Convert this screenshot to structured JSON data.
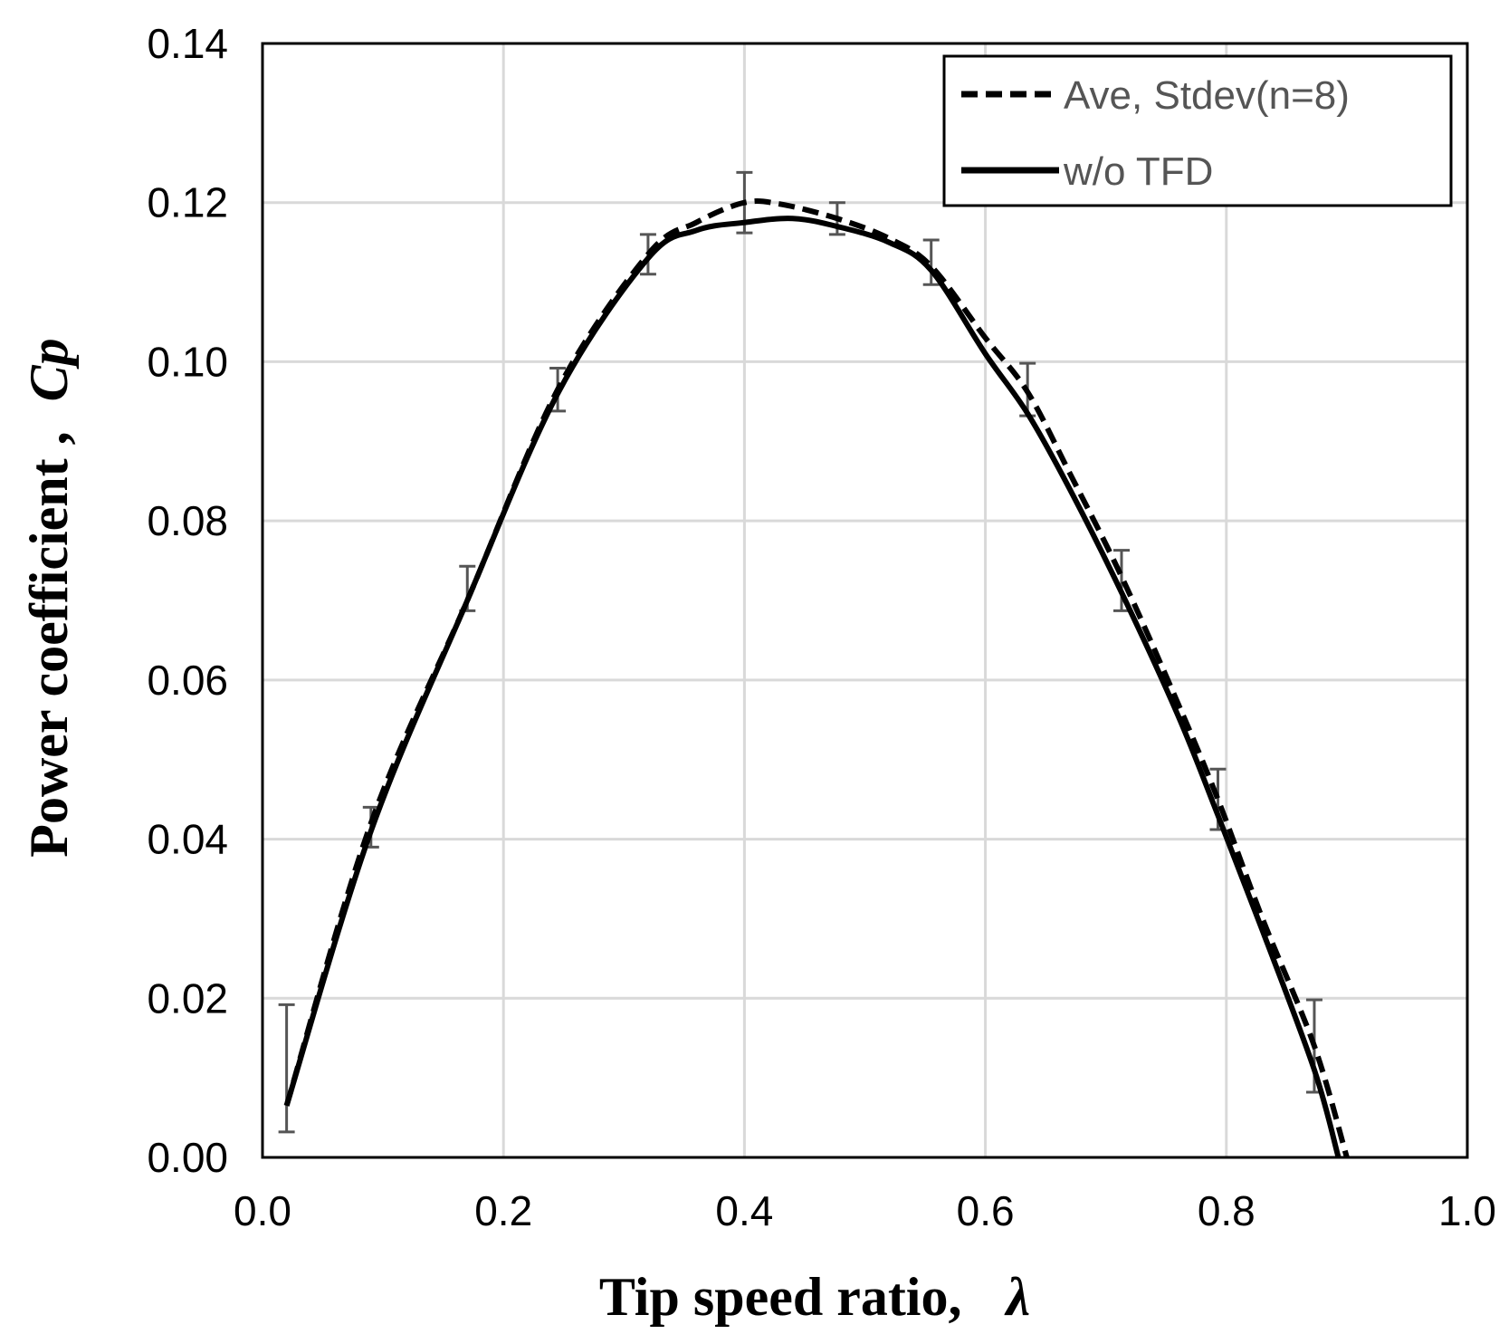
{
  "chart_data": {
    "type": "line",
    "xlabel": "Tip speed ratio,",
    "xlabel_symbol": "λ",
    "ylabel": "Power coefficient ,",
    "ylabel_symbol": "Cp",
    "xlim": [
      0.0,
      1.0
    ],
    "ylim": [
      0.0,
      0.14
    ],
    "xticks": [
      "0.0",
      "0.2",
      "0.4",
      "0.6",
      "0.8",
      "1.0"
    ],
    "yticks": [
      "0.00",
      "0.02",
      "0.04",
      "0.06",
      "0.08",
      "0.10",
      "0.12",
      "0.14"
    ],
    "grid": true,
    "legend_position": "top-right",
    "colors": {
      "line": "#000000",
      "errorbar": "#555555",
      "grid": "#d9d9d9",
      "legend_text": "#555555"
    },
    "series": [
      {
        "name": "Ave, Stdev(n=8)",
        "style": "dashed",
        "x": [
          0.02,
          0.09,
          0.17,
          0.245,
          0.32,
          0.36,
          0.4,
          0.43,
          0.477,
          0.52,
          0.555,
          0.6,
          0.635,
          0.67,
          0.713,
          0.76,
          0.793,
          0.83,
          0.873,
          0.9
        ],
        "y": [
          0.0065,
          0.042,
          0.07,
          0.0965,
          0.1135,
          0.1175,
          0.12,
          0.1198,
          0.118,
          0.1155,
          0.112,
          0.103,
          0.0962,
          0.086,
          0.073,
          0.057,
          0.045,
          0.03,
          0.014,
          0.0
        ],
        "error_x": [
          0.02,
          0.09,
          0.17,
          0.245,
          0.32,
          0.4,
          0.477,
          0.555,
          0.635,
          0.713,
          0.793,
          0.873
        ],
        "error_y": [
          0.0112,
          0.0415,
          0.0715,
          0.0965,
          0.1135,
          0.12,
          0.118,
          0.1125,
          0.0965,
          0.0725,
          0.045,
          0.014
        ],
        "error_sd": [
          0.008,
          0.0025,
          0.0028,
          0.0027,
          0.0025,
          0.0038,
          0.002,
          0.0028,
          0.0033,
          0.0038,
          0.0038,
          0.0058
        ]
      },
      {
        "name": "w/o TFD",
        "style": "solid",
        "x": [
          0.02,
          0.09,
          0.17,
          0.245,
          0.32,
          0.36,
          0.4,
          0.44,
          0.477,
          0.52,
          0.555,
          0.6,
          0.635,
          0.67,
          0.713,
          0.76,
          0.793,
          0.83,
          0.873,
          0.893
        ],
        "y": [
          0.0065,
          0.041,
          0.07,
          0.096,
          0.113,
          0.1165,
          0.1175,
          0.118,
          0.117,
          0.115,
          0.1115,
          0.101,
          0.0935,
          0.084,
          0.071,
          0.0555,
          0.043,
          0.0285,
          0.011,
          0.0
        ]
      }
    ]
  }
}
